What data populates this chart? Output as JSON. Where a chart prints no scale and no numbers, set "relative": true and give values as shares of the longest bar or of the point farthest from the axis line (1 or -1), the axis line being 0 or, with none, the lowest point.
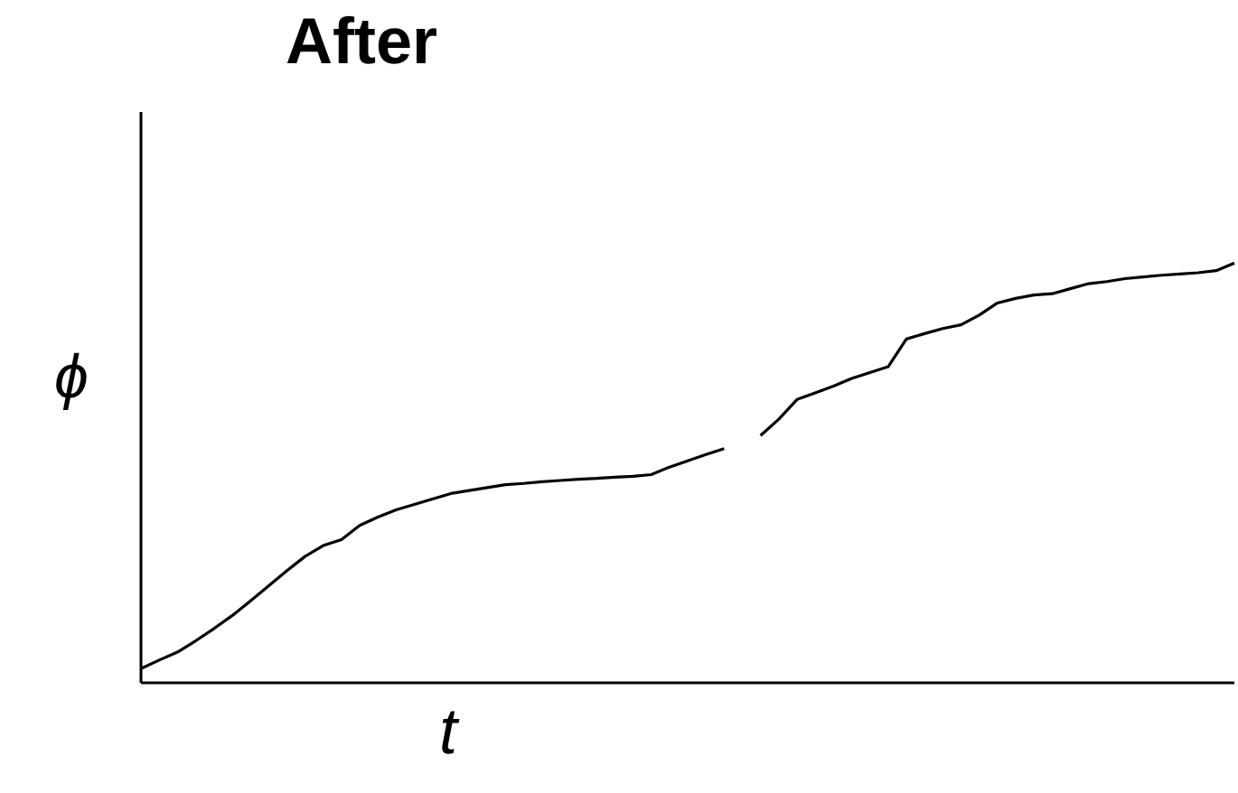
{
  "chart_data": {
    "type": "line",
    "title": "After",
    "xlabel": "t",
    "ylabel": "ϕ",
    "relative": true,
    "marker": "none",
    "line_style": "solid",
    "categories": [
      null,
      null,
      null,
      null,
      null,
      null,
      null,
      null,
      null,
      null,
      null,
      null,
      null,
      null,
      null,
      null,
      null,
      null,
      null,
      null,
      null,
      null,
      null,
      null,
      null,
      null,
      null,
      null,
      null,
      null,
      null,
      null,
      null,
      null,
      null,
      null,
      null,
      null,
      null,
      null,
      null,
      null,
      null,
      null,
      null,
      null,
      null,
      null,
      null,
      null,
      null,
      null,
      null,
      null,
      null,
      null,
      null,
      null,
      null,
      null,
      null
    ],
    "series": [
      {
        "color": "#000000",
        "values": [
          0.034,
          0.054,
          0.073,
          0.1,
          0.129,
          0.16,
          0.195,
          0.231,
          0.267,
          0.301,
          0.327,
          0.341,
          0.375,
          0.395,
          0.412,
          0.425,
          0.438,
          0.451,
          0.458,
          0.465,
          0.472,
          0.475,
          0.479,
          0.482,
          0.485,
          0.487,
          0.49,
          0.492,
          0.496,
          0.514,
          0.529,
          0.544,
          0.558,
          null,
          0.589,
          0.628,
          0.675,
          0.691,
          0.707,
          0.725,
          0.739,
          0.753,
          0.819,
          0.832,
          0.844,
          0.853,
          0.876,
          0.905,
          0.916,
          0.924,
          0.927,
          0.939,
          0.951,
          0.956,
          0.963,
          0.967,
          0.971,
          0.974,
          0.977,
          0.982,
          1.0
        ]
      }
    ]
  }
}
